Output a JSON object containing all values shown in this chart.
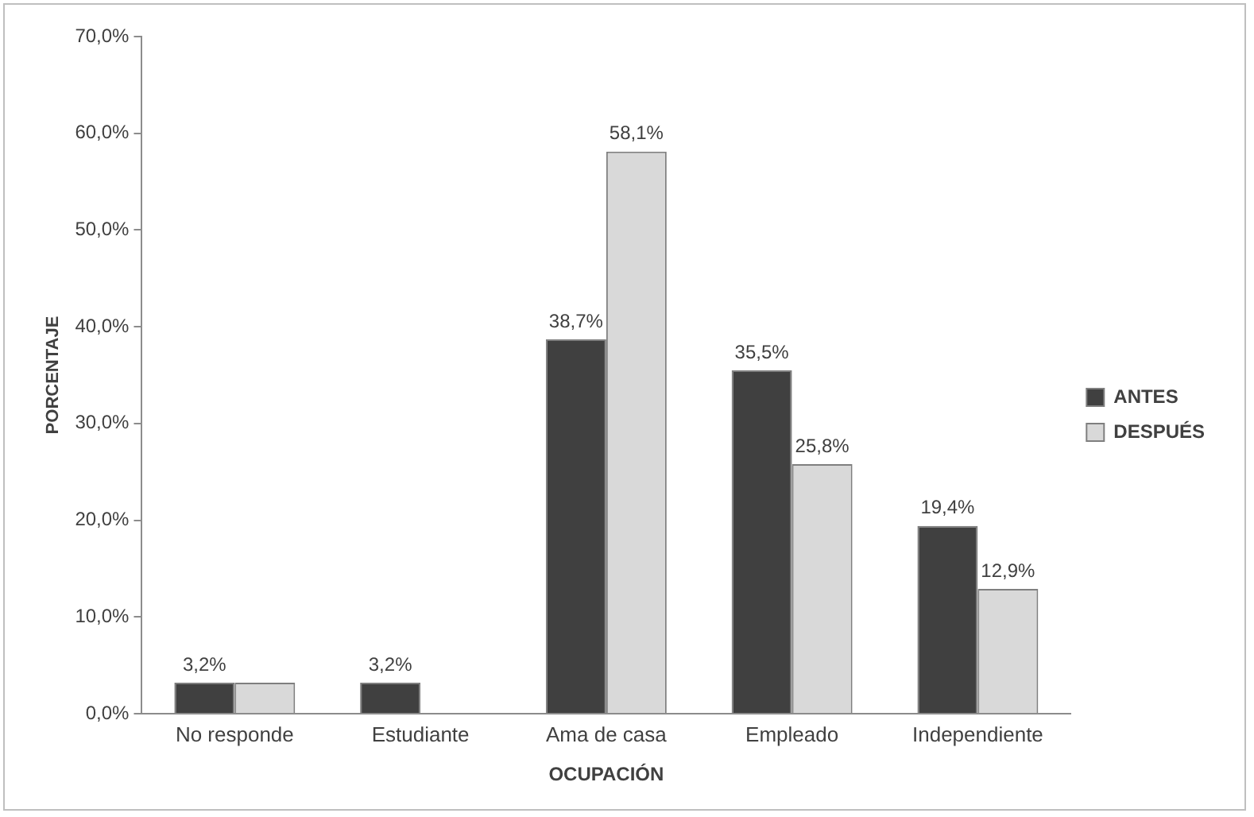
{
  "chart_data": {
    "type": "bar",
    "xlabel": "OCUPACIÓN",
    "ylabel": "PORCENTAJE",
    "categories": [
      "No responde",
      "Estudiante",
      "Ama de casa",
      "Empleado",
      "Independiente"
    ],
    "series": [
      {
        "name": "ANTES",
        "color": "#404040",
        "values": [
          3.2,
          3.2,
          38.7,
          35.5,
          19.4
        ],
        "value_labels": [
          "3,2%",
          "3,2%",
          "38,7%",
          "35,5%",
          "19,4%"
        ]
      },
      {
        "name": "DESPUÉS",
        "color": "#d9d9d9",
        "values": [
          3.2,
          0,
          58.1,
          25.8,
          12.9
        ],
        "value_labels": [
          null,
          null,
          "58,1%",
          "25,8%",
          "12,9%"
        ]
      }
    ],
    "ylim": [
      0,
      70
    ],
    "yticks": [
      {
        "value": 0,
        "label": "0,0%"
      },
      {
        "value": 10,
        "label": "10,0%"
      },
      {
        "value": 20,
        "label": "20,0%"
      },
      {
        "value": 30,
        "label": "30,0%"
      },
      {
        "value": 40,
        "label": "40,0%"
      },
      {
        "value": 50,
        "label": "50,0%"
      },
      {
        "value": 60,
        "label": "60,0%"
      },
      {
        "value": 70,
        "label": "70,0%"
      }
    ],
    "grid": false,
    "legend": "right"
  }
}
